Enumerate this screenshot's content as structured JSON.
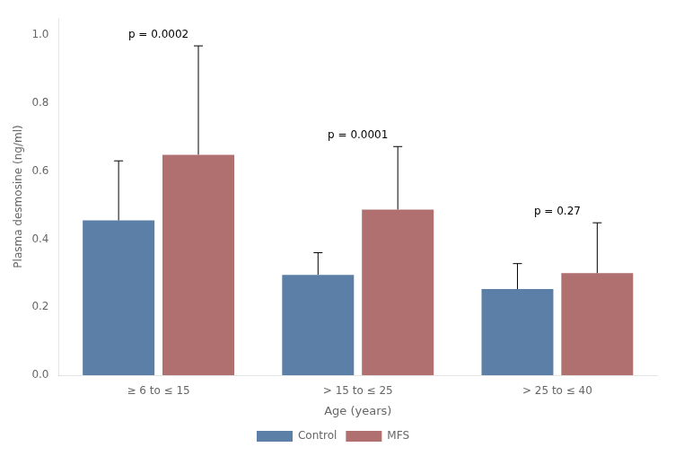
{
  "chart_data": {
    "type": "bar",
    "categories": [
      "≥ 6 to ≤ 15",
      "> 15 to ≤ 25",
      "> 25 to ≤ 40"
    ],
    "series": [
      {
        "name": "Control",
        "color": "#5b7fa6",
        "values": [
          0.455,
          0.295,
          0.253
        ],
        "errors_high": [
          0.175,
          0.065,
          0.075
        ]
      },
      {
        "name": "MFS",
        "color": "#b07070",
        "values": [
          0.648,
          0.487,
          0.3
        ],
        "errors_high": [
          0.32,
          0.185,
          0.148
        ]
      }
    ],
    "annotations": [
      "p = 0.0002",
      "p = 0.0001",
      "p = 0.27"
    ],
    "xlabel": "Age (years)",
    "ylabel": "Plasma desmosine (ng/ml)",
    "ylim": [
      0,
      1.05
    ],
    "yticks": [
      {
        "value": 0,
        "label": "0.0"
      },
      0.2,
      0.4,
      0.6,
      0.8,
      {
        "value": 1,
        "label": "1.0"
      }
    ],
    "grid": false,
    "legend": "bottom"
  }
}
